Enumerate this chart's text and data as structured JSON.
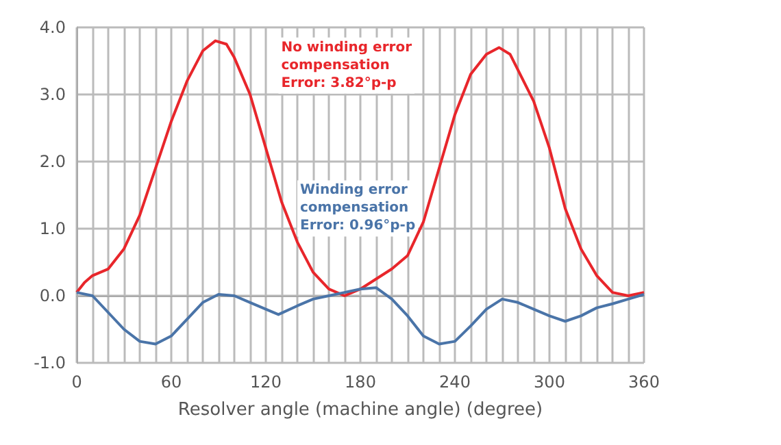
{
  "chart_data": {
    "type": "line",
    "xlabel": "Resolver angle (machine angle) (degree)",
    "xlim": [
      0,
      360
    ],
    "xticks": [
      0,
      {
        "value": 10,
        "label": null
      },
      {
        "value": 20,
        "label": null
      },
      {
        "value": 30,
        "label": null
      },
      {
        "value": 40,
        "label": null
      },
      {
        "value": 50,
        "label": null
      },
      60,
      {
        "value": 70,
        "label": null
      },
      {
        "value": 80,
        "label": null
      },
      {
        "value": 90,
        "label": null
      },
      {
        "value": 100,
        "label": null
      },
      {
        "value": 110,
        "label": null
      },
      120,
      {
        "value": 130,
        "label": null
      },
      {
        "value": 140,
        "label": null
      },
      {
        "value": 150,
        "label": null
      },
      {
        "value": 160,
        "label": null
      },
      {
        "value": 170,
        "label": null
      },
      180,
      {
        "value": 190,
        "label": null
      },
      {
        "value": 200,
        "label": null
      },
      {
        "value": 210,
        "label": null
      },
      {
        "value": 220,
        "label": null
      },
      {
        "value": 230,
        "label": null
      },
      240,
      {
        "value": 250,
        "label": null
      },
      {
        "value": 260,
        "label": null
      },
      {
        "value": 270,
        "label": null
      },
      {
        "value": 280,
        "label": null
      },
      {
        "value": 290,
        "label": null
      },
      300,
      {
        "value": 310,
        "label": null
      },
      {
        "value": 320,
        "label": null
      },
      {
        "value": 330,
        "label": null
      },
      {
        "value": 340,
        "label": null
      },
      {
        "value": 350,
        "label": null
      },
      360
    ],
    "ylim": [
      -1,
      4
    ],
    "yticks": [
      {
        "value": -1,
        "label": "-1.0"
      },
      {
        "value": 0,
        "label": "0.0"
      },
      {
        "value": 1,
        "label": "1.0"
      },
      {
        "value": 2,
        "label": "2.0"
      },
      {
        "value": 3,
        "label": "3.0"
      },
      {
        "value": 4,
        "label": "4.0"
      }
    ],
    "grid": true,
    "marker": "none",
    "line_style": "solid",
    "series": [
      {
        "color": "#e8262b",
        "x": [
          0,
          5,
          10,
          20,
          30,
          40,
          50,
          60,
          70,
          80,
          88,
          95,
          100,
          110,
          120,
          130,
          140,
          150,
          160,
          170,
          180,
          190,
          200,
          210,
          220,
          230,
          240,
          250,
          260,
          268,
          275,
          290,
          300,
          310,
          320,
          330,
          340,
          350,
          360
        ],
        "values": [
          0.05,
          0.2,
          0.3,
          0.4,
          0.7,
          1.2,
          1.9,
          2.6,
          3.2,
          3.65,
          3.8,
          3.75,
          3.55,
          3.0,
          2.2,
          1.4,
          0.8,
          0.35,
          0.1,
          0.0,
          0.1,
          0.25,
          0.4,
          0.6,
          1.1,
          1.9,
          2.7,
          3.3,
          3.6,
          3.7,
          3.6,
          2.9,
          2.2,
          1.3,
          0.7,
          0.3,
          0.05,
          0.0,
          0.05
        ]
      },
      {
        "color": "#4a74a8",
        "x": [
          0,
          10,
          20,
          30,
          40,
          50,
          60,
          70,
          80,
          90,
          100,
          110,
          120,
          128,
          140,
          150,
          160,
          170,
          180,
          190,
          200,
          210,
          220,
          230,
          240,
          250,
          260,
          270,
          280,
          290,
          300,
          310,
          320,
          330,
          340,
          350,
          360
        ],
        "values": [
          0.05,
          0.0,
          -0.25,
          -0.5,
          -0.68,
          -0.72,
          -0.6,
          -0.35,
          -0.1,
          0.02,
          0.0,
          -0.1,
          -0.2,
          -0.28,
          -0.15,
          -0.05,
          0.0,
          0.05,
          0.1,
          0.12,
          -0.05,
          -0.3,
          -0.6,
          -0.72,
          -0.68,
          -0.45,
          -0.2,
          -0.05,
          -0.1,
          -0.2,
          -0.3,
          -0.38,
          -0.3,
          -0.18,
          -0.12,
          -0.05,
          0.02
        ]
      }
    ],
    "annotations": [
      "No winding error\ncompensation\nError: 3.82°p-p",
      "Winding error\ncompensation\nError: 0.96°p-p"
    ]
  }
}
